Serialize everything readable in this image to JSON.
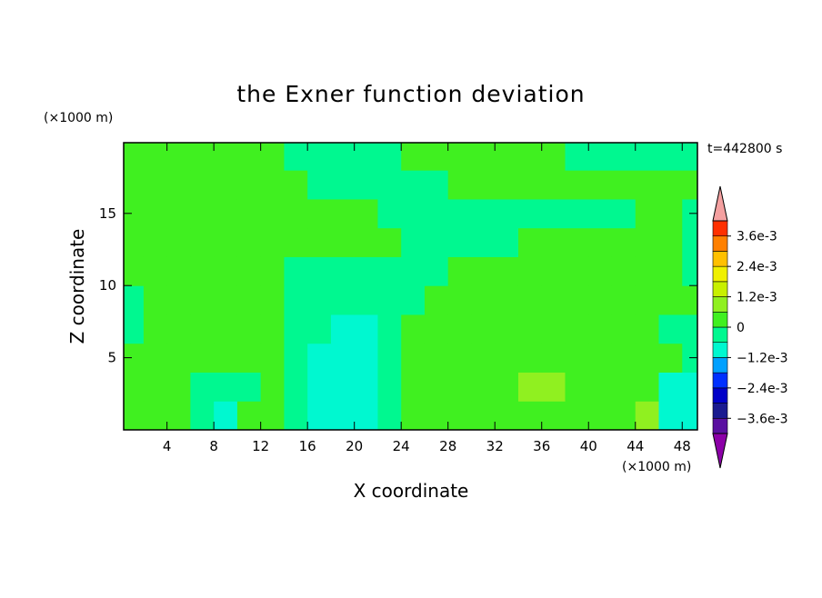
{
  "chart_data": {
    "type": "contourf",
    "title": "the Exner function deviation",
    "x_label": "X coordinate",
    "y_label": "Z coordinate",
    "x_unit": "(×1000 m)",
    "y_unit": "(×1000 m)",
    "time_label": "t=442800 s",
    "xlim": [
      0.3,
      49.3
    ],
    "ylim": [
      0,
      19.9
    ],
    "xticks": [
      4,
      8,
      12,
      16,
      20,
      24,
      28,
      32,
      36,
      40,
      44,
      48
    ],
    "yticks": [
      5,
      10,
      15
    ],
    "x": [
      1,
      3,
      5,
      7,
      9,
      11,
      13,
      15,
      17,
      19,
      21,
      23,
      25,
      27,
      29,
      31,
      33,
      35,
      37,
      39,
      41,
      43,
      45,
      47,
      49
    ],
    "y": [
      1,
      3,
      5,
      7,
      9,
      11,
      13,
      15,
      17,
      19
    ],
    "z": [
      [
        0.0003,
        0.0003,
        0.0003,
        -0.0003,
        -0.0009,
        0.0003,
        0.0003,
        -0.0003,
        -0.0009,
        -0.0009,
        -0.0009,
        -0.0003,
        0.0003,
        0.0003,
        0.0003,
        0.0003,
        0.0003,
        0.0003,
        0.0003,
        0.0003,
        0.0003,
        0.0003,
        0.0009,
        -0.0009,
        -0.0009
      ],
      [
        0.0003,
        0.0003,
        0.0003,
        -0.0003,
        -0.0003,
        -0.0003,
        0.0003,
        -0.0003,
        -0.0009,
        -0.0009,
        -0.0009,
        -0.0003,
        0.0003,
        0.0003,
        0.0003,
        0.0003,
        0.0003,
        0.0009,
        0.0009,
        0.0003,
        0.0003,
        0.0003,
        0.0003,
        -0.0009,
        -0.0009
      ],
      [
        0.0003,
        0.0003,
        0.0003,
        0.0003,
        0.0003,
        0.0003,
        0.0003,
        -0.0003,
        -0.0009,
        -0.0009,
        -0.0009,
        -0.0003,
        0.0003,
        0.0003,
        0.0003,
        0.0003,
        0.0003,
        0.0003,
        0.0003,
        0.0003,
        0.0003,
        0.0003,
        0.0003,
        0.0003,
        -0.0003
      ],
      [
        -0.0003,
        0.0003,
        0.0003,
        0.0003,
        0.0003,
        0.0003,
        0.0003,
        -0.0003,
        -0.0003,
        -0.0009,
        -0.0009,
        -0.0003,
        0.0003,
        0.0003,
        0.0003,
        0.0003,
        0.0003,
        0.0003,
        0.0003,
        0.0003,
        0.0003,
        0.0003,
        0.0003,
        -0.0003,
        -0.0003
      ],
      [
        -0.0003,
        0.0003,
        0.0003,
        0.0003,
        0.0003,
        0.0003,
        0.0003,
        -0.0003,
        -0.0003,
        -0.0003,
        -0.0003,
        -0.0003,
        -0.0003,
        0.0003,
        0.0003,
        0.0003,
        0.0003,
        0.0003,
        0.0003,
        0.0003,
        0.0003,
        0.0003,
        0.0003,
        0.0003,
        0.0003
      ],
      [
        0.0003,
        0.0003,
        0.0003,
        0.0003,
        0.0003,
        0.0003,
        0.0003,
        -0.0003,
        -0.0003,
        -0.0003,
        -0.0003,
        -0.0003,
        -0.0003,
        -0.0003,
        0.0003,
        0.0003,
        0.0003,
        0.0003,
        0.0003,
        0.0003,
        0.0003,
        0.0003,
        0.0003,
        0.0003,
        -0.0003
      ],
      [
        0.0003,
        0.0003,
        0.0003,
        0.0003,
        0.0003,
        0.0003,
        0.0003,
        0.0003,
        0.0003,
        0.0003,
        0.0003,
        0.0003,
        -0.0003,
        -0.0003,
        -0.0003,
        -0.0003,
        -0.0003,
        0.0003,
        0.0003,
        0.0003,
        0.0003,
        0.0003,
        0.0003,
        0.0003,
        -0.0003
      ],
      [
        0.0003,
        0.0003,
        0.0003,
        0.0003,
        0.0003,
        0.0003,
        0.0003,
        0.0003,
        0.0003,
        0.0003,
        0.0003,
        -0.0003,
        -0.0003,
        -0.0003,
        -0.0003,
        -0.0003,
        -0.0003,
        -0.0003,
        -0.0003,
        -0.0003,
        -0.0003,
        -0.0003,
        0.0003,
        0.0003,
        -0.0003
      ],
      [
        0.0003,
        0.0003,
        0.0003,
        0.0003,
        0.0003,
        0.0003,
        0.0003,
        0.0003,
        -0.0003,
        -0.0003,
        -0.0003,
        -0.0003,
        -0.0003,
        -0.0003,
        0.0003,
        0.0003,
        0.0003,
        0.0003,
        0.0003,
        0.0003,
        0.0003,
        0.0003,
        0.0003,
        0.0003,
        0.0003
      ],
      [
        0.0003,
        0.0003,
        0.0003,
        0.0003,
        0.0003,
        0.0003,
        0.0003,
        -0.0003,
        -0.0003,
        -0.0003,
        -0.0003,
        -0.0003,
        0.0003,
        0.0003,
        0.0003,
        0.0003,
        0.0003,
        0.0003,
        0.0003,
        -0.0003,
        -0.0003,
        -0.0003,
        -0.0003,
        -0.0003,
        -0.0003
      ]
    ],
    "levels": [
      -0.0042,
      -0.0036,
      -0.003,
      -0.0024,
      -0.0018,
      -0.0012,
      -0.0006,
      0,
      0.0006,
      0.0012,
      0.0018,
      0.0024,
      0.003,
      0.0036,
      0.0042
    ],
    "colors": [
      "#5a10a0",
      "#1a1a90",
      "#0000c8",
      "#0030ff",
      "#00a0ff",
      "#00f8d0",
      "#00f890",
      "#40f020",
      "#90f020",
      "#c8f000",
      "#f0f000",
      "#ffc000",
      "#ff8000",
      "#ff3000"
    ],
    "under_color": "#8c00a8",
    "over_color": "#f4a0a0",
    "cbar_ticks": [
      {
        "value": 0.0036,
        "label": "3.6e-3"
      },
      {
        "value": 0.0024,
        "label": "2.4e-3"
      },
      {
        "value": 0.0012,
        "label": "1.2e-3"
      },
      0,
      {
        "value": -0.0012,
        "label": "−1.2e-3"
      },
      {
        "value": -0.0024,
        "label": "−2.4e-3"
      },
      {
        "value": -0.0036,
        "label": "−3.6e-3"
      }
    ]
  }
}
